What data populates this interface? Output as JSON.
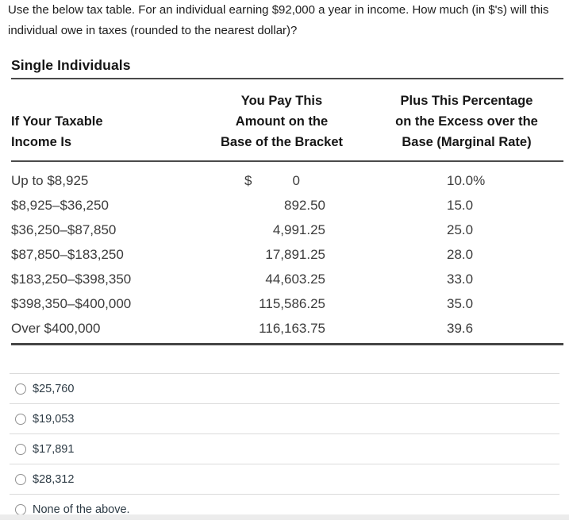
{
  "question": {
    "text": "Use the below tax table.  For an individual earning $92,000 a year in income.  How much (in $'s) will this individual owe in taxes (rounded to the nearest dollar)?"
  },
  "table": {
    "title": "Single Individuals",
    "header": {
      "col1": [
        "If Your Taxable",
        "Income Is"
      ],
      "col2": [
        "You Pay This",
        "Amount on the",
        "Base of the Bracket"
      ],
      "col3": [
        "Plus This Percentage",
        "on the Excess over the",
        "Base (Marginal Rate)"
      ]
    },
    "rows": [
      {
        "range": "Up to $8,925",
        "base_prefix": "$",
        "base": "0",
        "rate": "10.0%"
      },
      {
        "range": "$8,925–$36,250",
        "base": "892.50",
        "rate": "15.0"
      },
      {
        "range": "$36,250–$87,850",
        "base": "4,991.25",
        "rate": "25.0"
      },
      {
        "range": "$87,850–$183,250",
        "base": "17,891.25",
        "rate": "28.0"
      },
      {
        "range": "$183,250–$398,350",
        "base": "44,603.25",
        "rate": "33.0"
      },
      {
        "range": "$398,350–$400,000",
        "base": "115,586.25",
        "rate": "35.0"
      },
      {
        "range": "Over $400,000",
        "base": "116,163.75",
        "rate": "39.6"
      }
    ]
  },
  "options": [
    {
      "label": "$25,760"
    },
    {
      "label": "$19,053"
    },
    {
      "label": "$17,891"
    },
    {
      "label": "$28,312"
    },
    {
      "label": "None of the above."
    }
  ]
}
